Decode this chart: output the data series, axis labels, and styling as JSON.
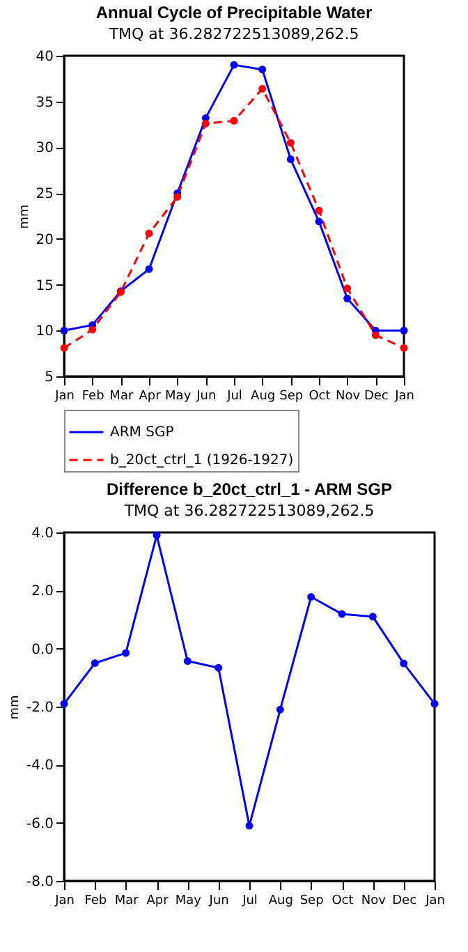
{
  "chart_data": [
    {
      "type": "line",
      "title": "Annual Cycle of Precipitable Water",
      "subtitle": "TMQ at 36.282722513089,262.5",
      "ylabel": "mm",
      "categories": [
        "Jan",
        "Feb",
        "Mar",
        "Apr",
        "May",
        "Jun",
        "Jul",
        "Aug",
        "Sep",
        "Oct",
        "Nov",
        "Dec",
        "Jan"
      ],
      "series": [
        {
          "name": "ARM SGP",
          "color": "#0000ff",
          "line_style": "solid",
          "values": [
            10.0,
            10.6,
            14.3,
            16.7,
            25.0,
            33.2,
            39.0,
            38.5,
            28.7,
            21.9,
            13.5,
            10.0,
            10.0
          ]
        },
        {
          "name": "b_20ct_ctrl_1 (1926-1927)",
          "color": "#ff0000",
          "line_style": "dashed",
          "values": [
            8.1,
            10.1,
            14.2,
            20.6,
            24.6,
            32.6,
            32.9,
            36.4,
            30.5,
            23.1,
            14.6,
            9.5,
            8.1
          ]
        }
      ],
      "ylim": [
        5,
        40
      ],
      "yticks": [
        5,
        10,
        15,
        20,
        25,
        30,
        35,
        40
      ],
      "marker": "circle",
      "legend": "bottom"
    },
    {
      "type": "line",
      "title": "Difference b_20ct_ctrl_1 - ARM SGP",
      "subtitle": "TMQ at 36.282722513089,262.5",
      "ylabel": "mm",
      "categories": [
        "Jan",
        "Feb",
        "Mar",
        "Apr",
        "May",
        "Jun",
        "Jul",
        "Aug",
        "Sep",
        "Oct",
        "Nov",
        "Dec",
        "Jan"
      ],
      "series": [
        {
          "color": "#0000ff",
          "values": [
            -1.9,
            -0.5,
            -0.15,
            3.9,
            -0.43,
            -0.66,
            -6.1,
            -2.1,
            1.78,
            1.19,
            1.1,
            -0.51,
            -1.9
          ]
        }
      ],
      "ylim": [
        -8,
        4
      ],
      "yticks": [
        {
          "value": -8,
          "label": "-8.0"
        },
        {
          "value": -6,
          "label": "-6.0"
        },
        {
          "value": -4,
          "label": "-4.0"
        },
        {
          "value": -2,
          "label": "-2.0"
        },
        {
          "value": 0,
          "label": "0.0"
        },
        {
          "value": 2,
          "label": "2.0"
        },
        {
          "value": 4,
          "label": "4.0"
        }
      ],
      "marker": "circle"
    }
  ]
}
